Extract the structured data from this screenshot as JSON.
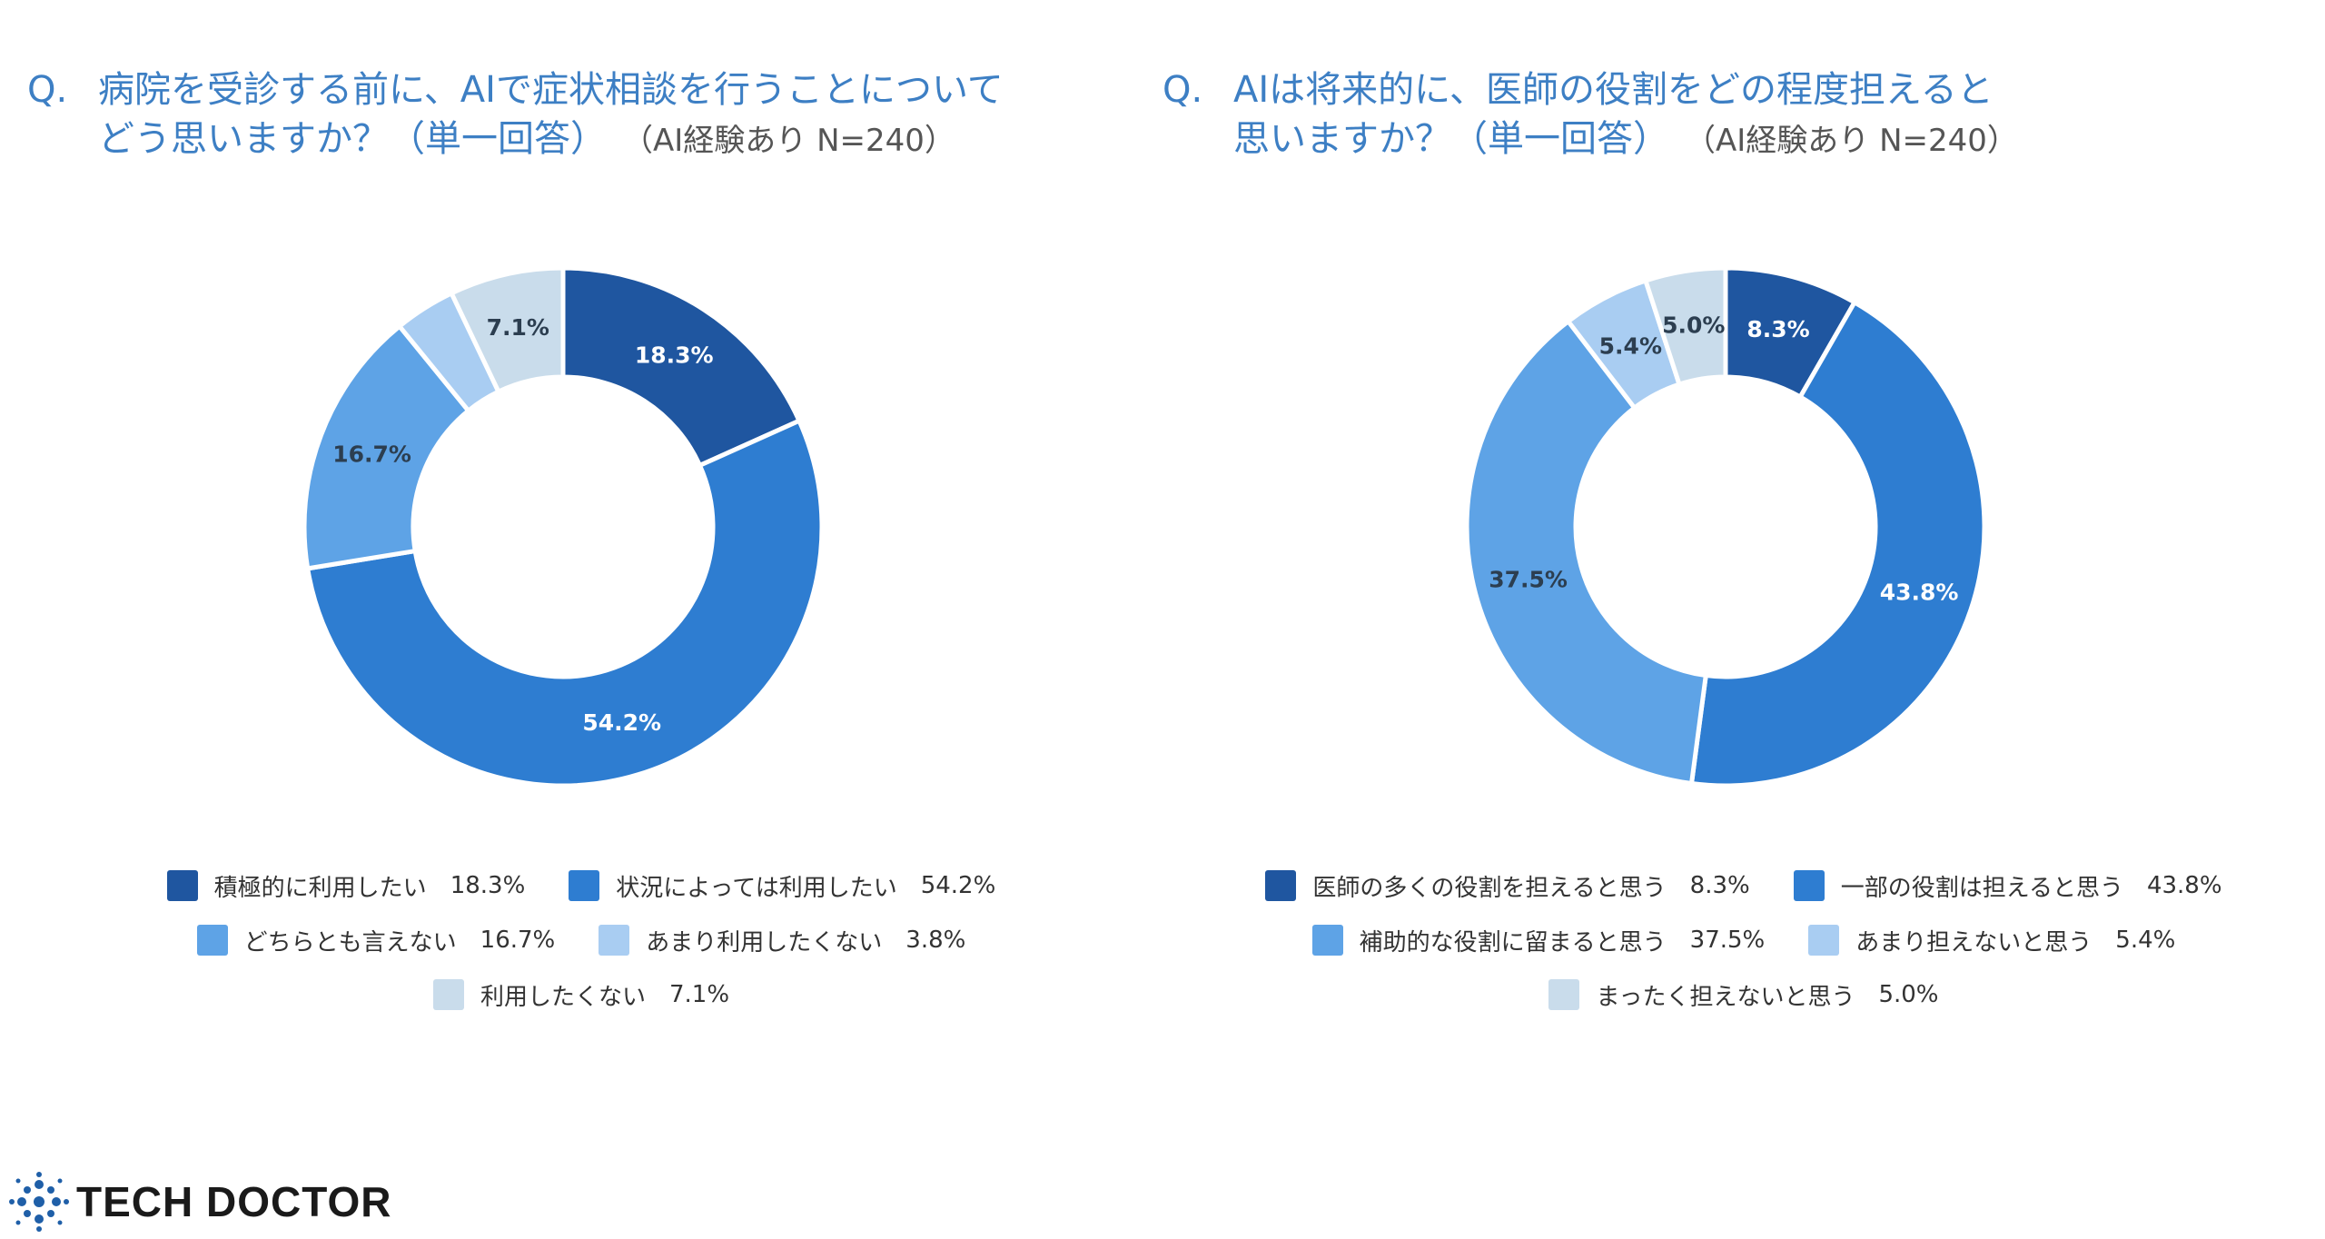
{
  "chart_data": [
    {
      "type": "donut",
      "question_prefix": "Q.",
      "title_line1": "病院を受診する前に、AIで症状相談を行うことについて",
      "title_line2": "どう思いますか？（単一回答）",
      "sample_note": "（AI経験あり N=240）",
      "categories": [
        "積極的に利用したい",
        "状況によっては利用したい",
        "どちらとも言えない",
        "あまり利用したくない",
        "利用したくない"
      ],
      "values": [
        18.3,
        54.2,
        16.7,
        3.8,
        7.1
      ],
      "display_values": [
        "18.3%",
        "54.2%",
        "16.7%",
        "3.8%",
        "7.1%"
      ],
      "slice_labels": [
        "18.3%",
        "54.2%",
        "16.7%",
        "",
        "7.1%"
      ],
      "colors": [
        "#1f56a0",
        "#2e7dd1",
        "#5ea3e6",
        "#a9cdf2",
        "#c9dceb"
      ],
      "label_colors": [
        "#ffffff",
        "#ffffff",
        "#2c3e50",
        "",
        "#2c3e50"
      ],
      "legend_rows": [
        [
          0,
          1
        ],
        [
          2,
          3
        ],
        [
          4
        ]
      ]
    },
    {
      "type": "donut",
      "question_prefix": "Q.",
      "title_line1": "AIは将来的に、医師の役割をどの程度担えると",
      "title_line2": "思いますか？（単一回答）",
      "sample_note": "（AI経験あり N=240）",
      "categories": [
        "医師の多くの役割を担えると思う",
        "一部の役割は担えると思う",
        "補助的な役割に留まると思う",
        "あまり担えないと思う",
        "まったく担えないと思う"
      ],
      "values": [
        8.3,
        43.8,
        37.5,
        5.4,
        5.0
      ],
      "display_values": [
        "8.3%",
        "43.8%",
        "37.5%",
        "5.4%",
        "5.0%"
      ],
      "slice_labels": [
        "8.3%",
        "43.8%",
        "37.5%",
        "5.4%",
        "5.0%"
      ],
      "colors": [
        "#1f56a0",
        "#2e7dd1",
        "#5ea3e6",
        "#a9cdf2",
        "#c9dceb"
      ],
      "label_colors": [
        "#ffffff",
        "#ffffff",
        "#2c3e50",
        "#2c3e50",
        "#2c3e50"
      ],
      "legend_rows": [
        [
          0,
          1
        ],
        [
          2,
          3
        ],
        [
          4
        ]
      ]
    }
  ],
  "brand": {
    "name": "TECH DOCTOR",
    "icon": "molecule-dots-icon",
    "color": "#1f5fa8"
  }
}
